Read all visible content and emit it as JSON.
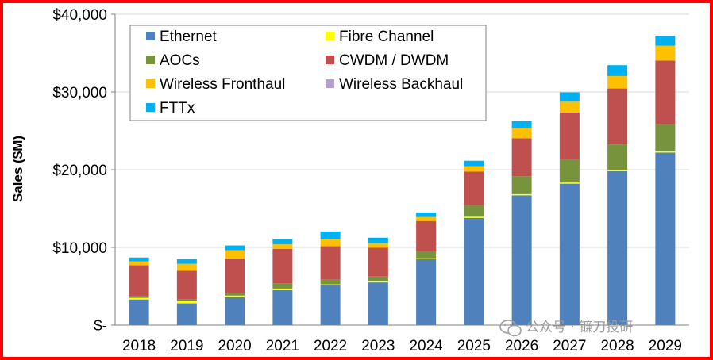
{
  "chart_data": {
    "type": "bar",
    "stacked": true,
    "title": "",
    "xlabel": "",
    "ylabel": "Sales ($M)",
    "ylim": [
      0,
      40000
    ],
    "yticks": [
      {
        "value": 0,
        "label": "$-"
      },
      {
        "value": 10000,
        "label": "$10,000"
      },
      {
        "value": 20000,
        "label": "$20,000"
      },
      {
        "value": 30000,
        "label": "$30,000"
      },
      {
        "value": 40000,
        "label": "$40,000"
      }
    ],
    "grid": true,
    "legend_position": "top-left",
    "categories": [
      "2018",
      "2019",
      "2020",
      "2021",
      "2022",
      "2023",
      "2024",
      "2025",
      "2026",
      "2027",
      "2028",
      "2029"
    ],
    "series": [
      {
        "name": "Ethernet",
        "color": "#4f81bd",
        "values": [
          3300,
          2800,
          3600,
          4500,
          5100,
          5500,
          8500,
          13800,
          16700,
          18200,
          19800,
          22200
        ]
      },
      {
        "name": "Fibre Channel",
        "color": "#ffff00",
        "values": [
          200,
          300,
          200,
          200,
          150,
          150,
          100,
          150,
          150,
          150,
          150,
          150
        ]
      },
      {
        "name": "AOCs",
        "color": "#77933c",
        "values": [
          200,
          200,
          350,
          700,
          600,
          600,
          900,
          1500,
          2300,
          3000,
          3300,
          3500
        ]
      },
      {
        "name": "CWDM / DWDM",
        "color": "#c0504d",
        "values": [
          4000,
          3700,
          4400,
          4400,
          4300,
          3700,
          3900,
          4300,
          4900,
          6000,
          7200,
          8200
        ]
      },
      {
        "name": "Wireless Fronthaul",
        "color": "#ffc000",
        "values": [
          500,
          900,
          1100,
          600,
          900,
          600,
          500,
          700,
          1300,
          1400,
          1600,
          1900
        ]
      },
      {
        "name": "Wireless Backhaul",
        "color": "#b3a2c7",
        "values": [
          0,
          0,
          0,
          0,
          0,
          0,
          0,
          0,
          0,
          0,
          0,
          0
        ]
      },
      {
        "name": "FTTx",
        "color": "#00b0f0",
        "values": [
          500,
          600,
          600,
          700,
          1000,
          700,
          600,
          700,
          900,
          1200,
          1400,
          1300
        ]
      }
    ]
  },
  "watermark": {
    "text": "公众号 · 镰刀投研",
    "icon": "wechat-icon"
  },
  "colors": {
    "frame": "#ff0000",
    "grid": "#d9d9d9",
    "axis": "#808080"
  }
}
